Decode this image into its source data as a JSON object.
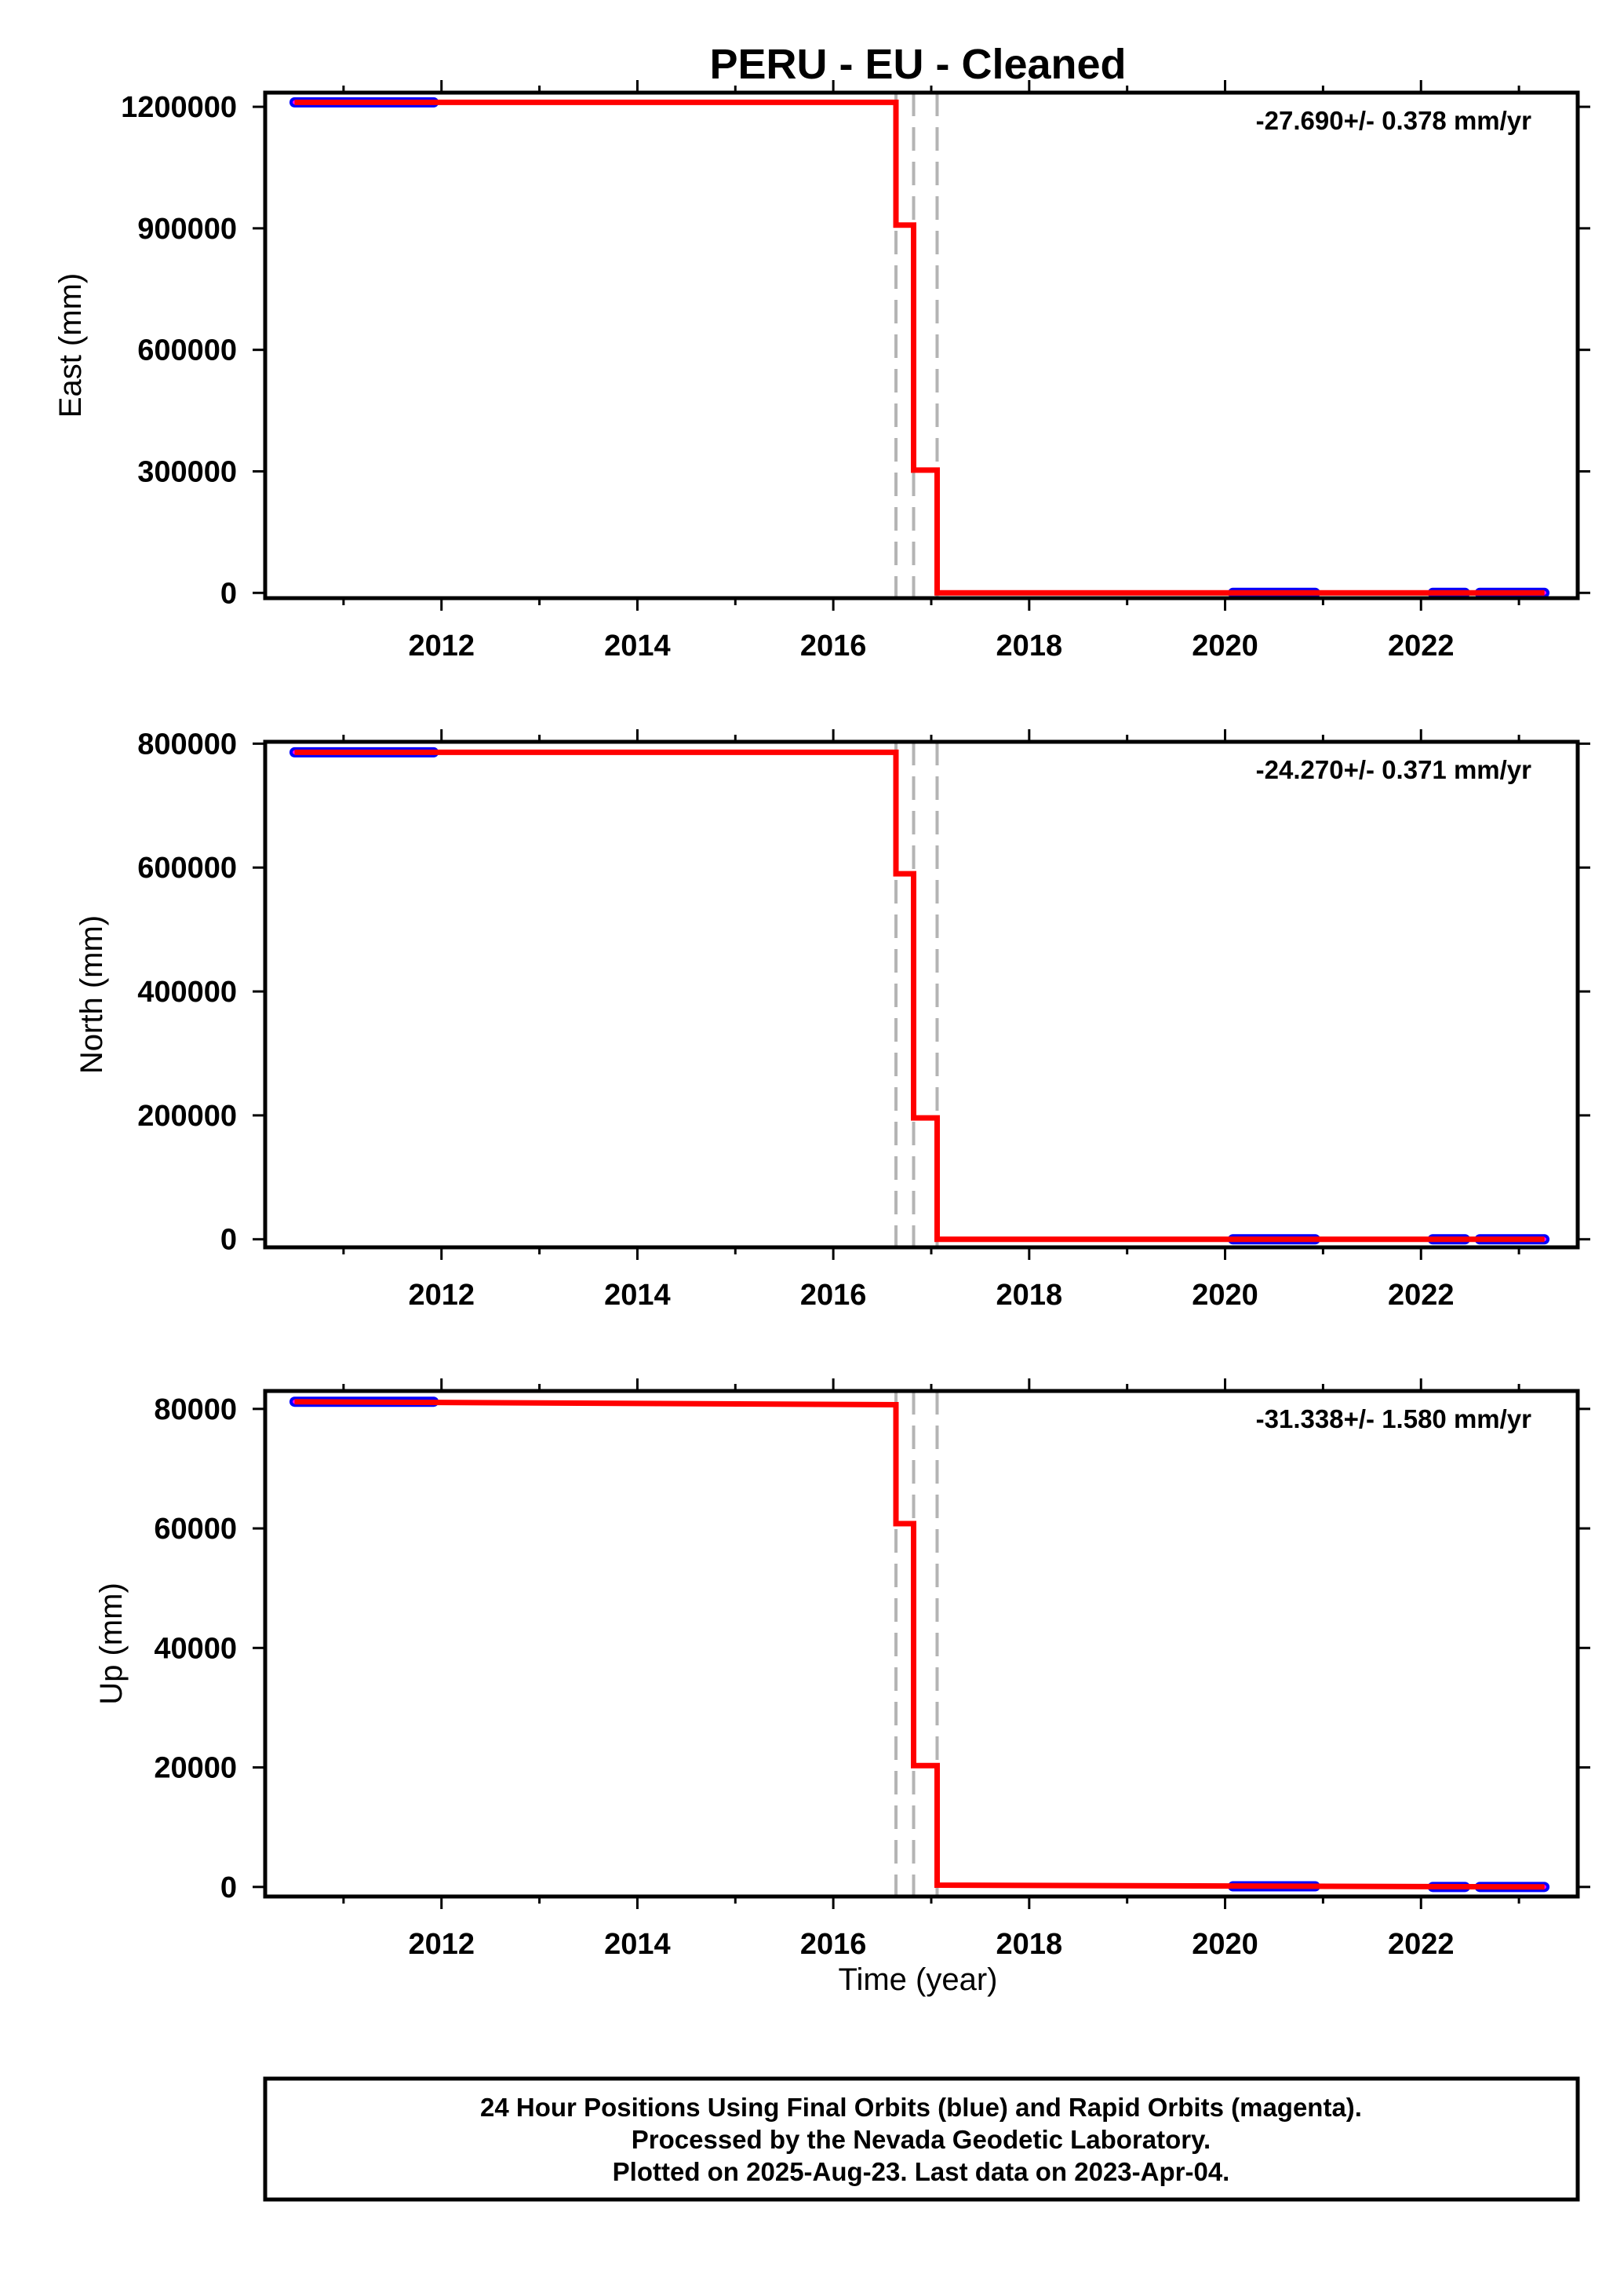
{
  "title": "PERU  - EU - Cleaned",
  "xlabel": "Time (year)",
  "colors": {
    "fit": "#ff0000",
    "final_orbits": "#0000ff",
    "rapid_orbits": "#ff00ff",
    "events": "#b4b4b4",
    "frame": "#000000"
  },
  "footer": {
    "lines": [
      "24 Hour Positions Using Final Orbits (blue) and Rapid Orbits (magenta).",
      "Processed by the Nevada Geodetic Laboratory.",
      "Plotted on 2025-Aug-23. Last data on 2023-Apr-04."
    ]
  },
  "chart_data": [
    {
      "type": "line",
      "ylabel": "East (mm)",
      "rate_label": "-27.690+/- 0.378 mm/yr",
      "xlim": [
        2010.2,
        2023.6
      ],
      "ylim": [
        -13000,
        1235000
      ],
      "x_ticks": [
        2012,
        2014,
        2016,
        2018,
        2020,
        2022
      ],
      "y_ticks": [
        0,
        300000,
        600000,
        900000,
        1200000
      ],
      "event_lines_x": [
        2016.64,
        2016.82,
        2017.06
      ],
      "data_segments": [
        [
          2010.5,
          2011.92
        ],
        [
          2020.08,
          2020.92
        ],
        [
          2022.12,
          2022.45
        ],
        [
          2022.6,
          2023.26
        ]
      ],
      "segment_values": [
        1211000,
        0,
        0,
        0
      ],
      "fit_x": [
        2010.5,
        2016.64,
        2016.64,
        2016.82,
        2016.82,
        2017.06,
        2017.06,
        2023.26
      ],
      "fit_y": [
        1211000,
        1211000,
        908000,
        908000,
        303000,
        303000,
        0,
        0
      ]
    },
    {
      "type": "line",
      "ylabel": "North (mm)",
      "rate_label": "-24.270+/- 0.371 mm/yr",
      "xlim": [
        2010.2,
        2023.6
      ],
      "ylim": [
        -13000,
        803000
      ],
      "x_ticks": [
        2012,
        2014,
        2016,
        2018,
        2020,
        2022
      ],
      "y_ticks": [
        0,
        200000,
        400000,
        600000,
        800000
      ],
      "event_lines_x": [
        2016.64,
        2016.82,
        2017.06
      ],
      "data_segments": [
        [
          2010.5,
          2011.92
        ],
        [
          2020.08,
          2020.92
        ],
        [
          2022.12,
          2022.45
        ],
        [
          2022.6,
          2023.26
        ]
      ],
      "segment_values": [
        786000,
        0,
        0,
        0
      ],
      "fit_x": [
        2010.5,
        2016.64,
        2016.64,
        2016.82,
        2016.82,
        2017.06,
        2017.06,
        2023.26
      ],
      "fit_y": [
        786000,
        786000,
        590000,
        590000,
        196000,
        196000,
        0,
        0
      ]
    },
    {
      "type": "line",
      "ylabel": "Up (mm)",
      "rate_label": "-31.338+/- 1.580 mm/yr",
      "xlim": [
        2010.2,
        2023.6
      ],
      "ylim": [
        -1600,
        83000
      ],
      "x_ticks": [
        2012,
        2014,
        2016,
        2018,
        2020,
        2022
      ],
      "y_ticks": [
        0,
        20000,
        40000,
        60000,
        80000
      ],
      "event_lines_x": [
        2016.64,
        2016.82,
        2017.06
      ],
      "data_segments": [
        [
          2010.5,
          2011.92
        ],
        [
          2020.08,
          2020.92
        ],
        [
          2022.12,
          2022.45
        ],
        [
          2022.6,
          2023.26
        ]
      ],
      "segment_values": [
        81200,
        100,
        0,
        0
      ],
      "fit_x": [
        2010.5,
        2016.64,
        2016.64,
        2016.82,
        2016.82,
        2017.06,
        2017.06,
        2023.26
      ],
      "fit_y": [
        81200,
        80700,
        60800,
        60800,
        20300,
        20300,
        300,
        0
      ]
    }
  ]
}
